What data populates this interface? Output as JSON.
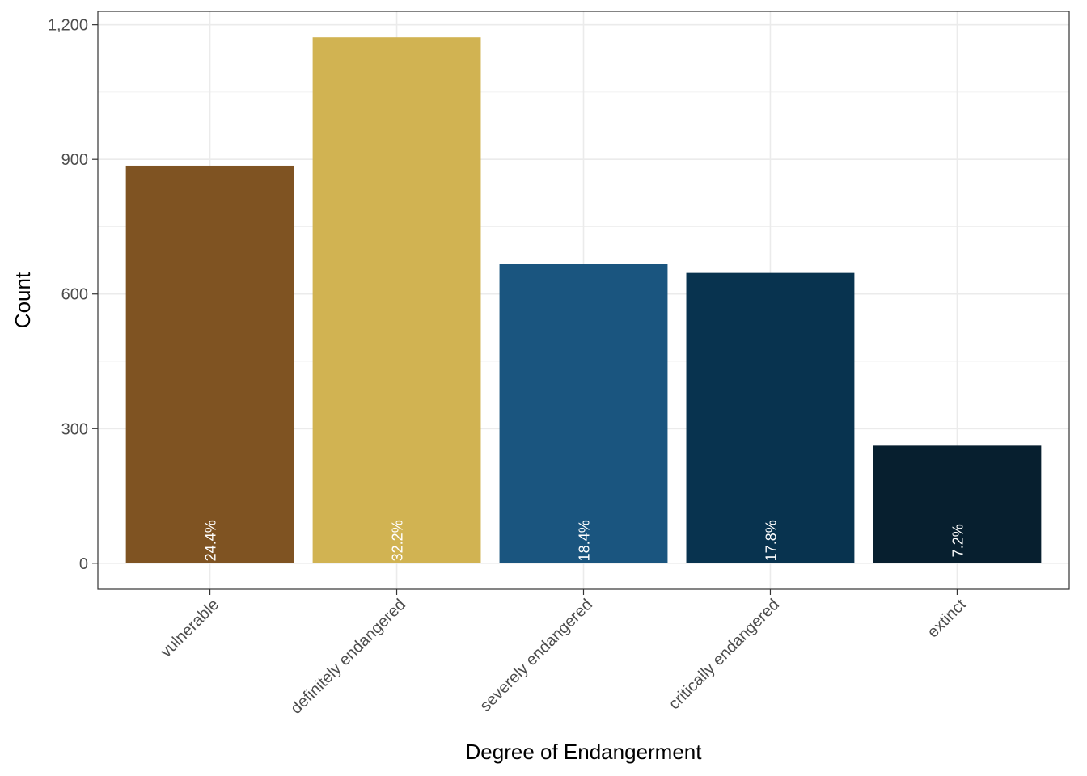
{
  "chart_data": {
    "type": "bar",
    "categories": [
      "vulnerable",
      "definitely endangered",
      "severely endangered",
      "critically endangered",
      "extinct"
    ],
    "values": [
      886,
      1172,
      667,
      647,
      262
    ],
    "labels": [
      "24.4%",
      "32.2%",
      "18.4%",
      "17.8%",
      "7.2%"
    ],
    "colors": [
      "#7f5322",
      "#d1b352",
      "#1a557f",
      "#08334f",
      "#071f2f"
    ],
    "xlabel": "Degree of Endangerment",
    "ylabel": "Count",
    "ylim": [
      -58,
      1230
    ],
    "yticks": [
      0,
      300,
      600,
      900,
      1200
    ],
    "ytick_labels": [
      "0",
      "300",
      "600",
      "900",
      "1,200"
    ],
    "grid": true,
    "legend": "none"
  }
}
